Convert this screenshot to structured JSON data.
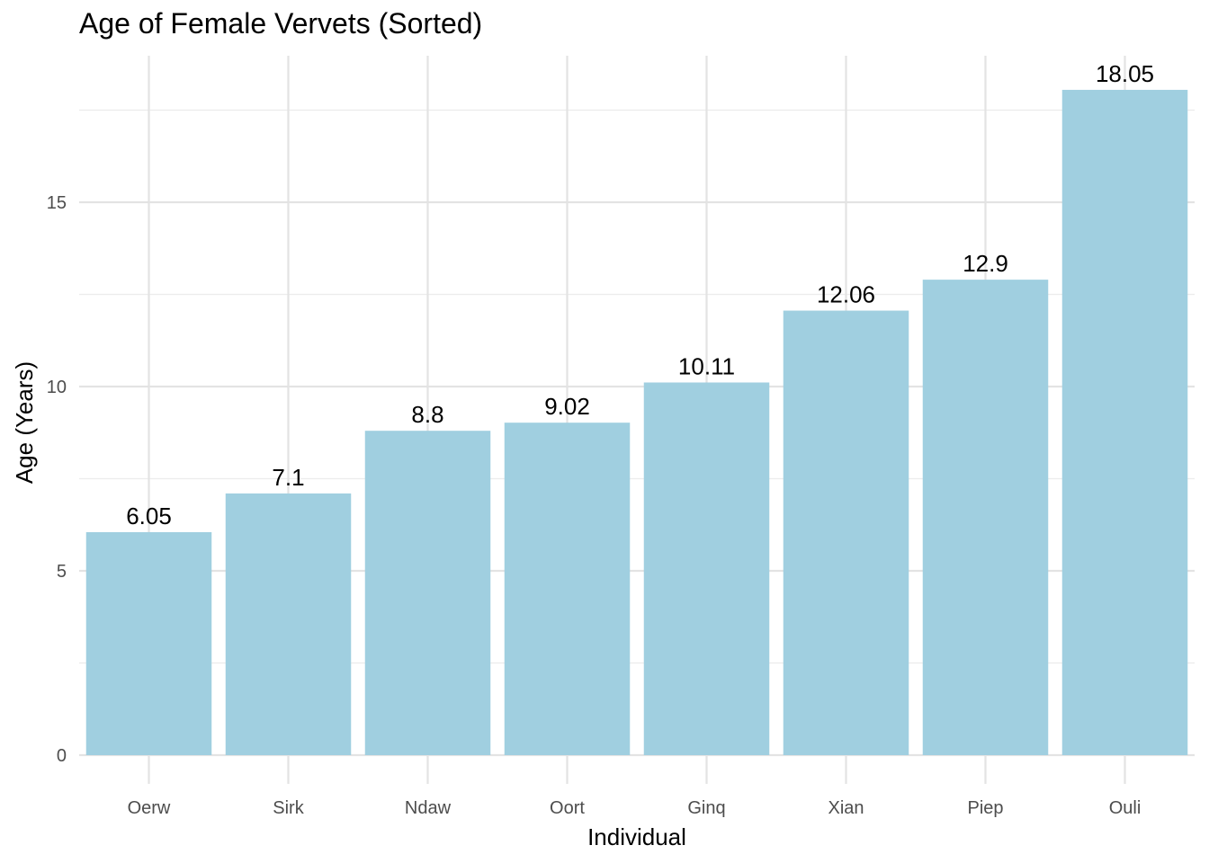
{
  "chart_data": {
    "type": "bar",
    "title": "Age of Female Vervets (Sorted)",
    "xlabel": "Individual",
    "ylabel": "Age (Years)",
    "categories": [
      "Oerw",
      "Sirk",
      "Ndaw",
      "Oort",
      "Ginq",
      "Xian",
      "Piep",
      "Ouli"
    ],
    "values": [
      6.05,
      7.1,
      8.8,
      9.02,
      10.11,
      12.06,
      12.9,
      18.05
    ],
    "data_labels": [
      "6.05",
      "7.1",
      "8.8",
      "9.02",
      "10.11",
      "12.06",
      "12.9",
      "18.05"
    ],
    "y_ticks": [
      0,
      5,
      10,
      15
    ],
    "ylim": [
      0,
      18.95
    ],
    "grid": true,
    "bar_color": "#a0cfe0"
  }
}
